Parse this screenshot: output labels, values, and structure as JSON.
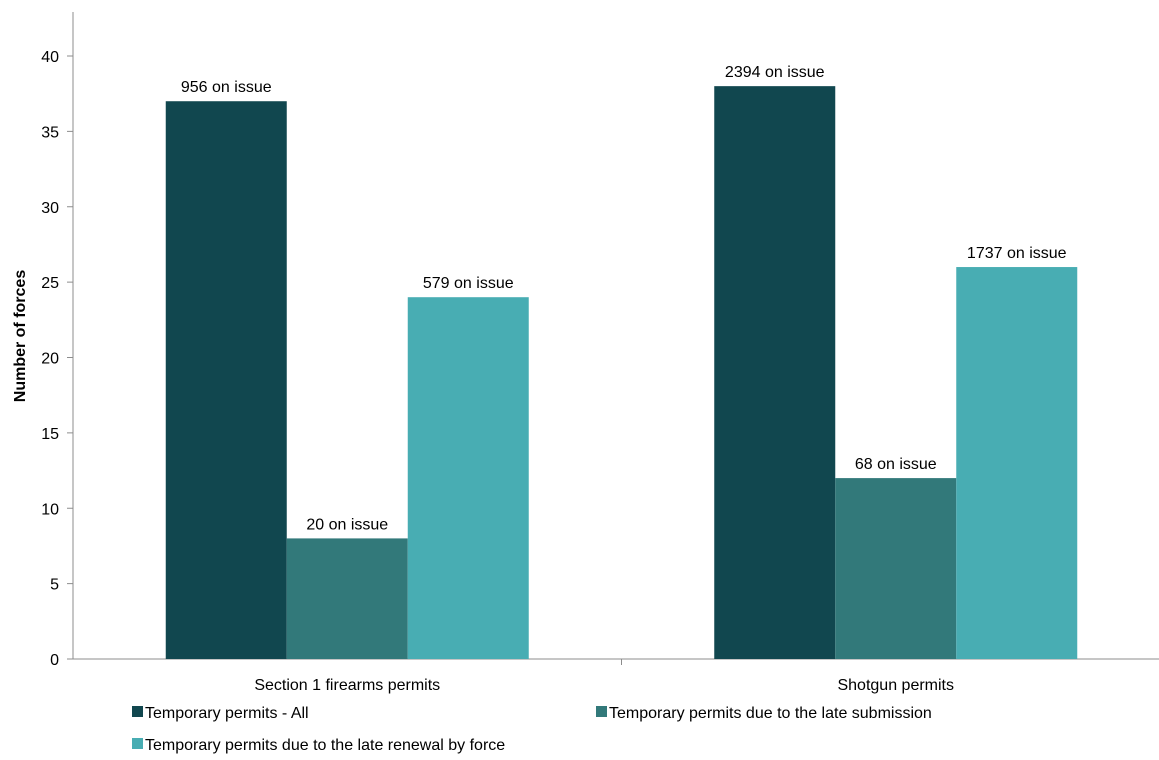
{
  "chart_data": {
    "type": "bar",
    "title": "",
    "xlabel": "",
    "ylabel": "Number of forces",
    "ylim": [
      0,
      40
    ],
    "yticks": [
      0,
      5,
      10,
      15,
      20,
      25,
      30,
      35,
      40
    ],
    "grid": false,
    "legend_position": "bottom",
    "categories": [
      "Section 1 firearms permits",
      "Shotgun permits"
    ],
    "series": [
      {
        "name": "Temporary permits - All",
        "color": "#11474f",
        "values": [
          37,
          38
        ],
        "labels": [
          "956 on issue",
          "2394 on issue"
        ]
      },
      {
        "name": "Temporary permits due to the late submission",
        "color": "#32797a",
        "values": [
          8,
          12
        ],
        "labels": [
          "20 on issue",
          "68 on issue"
        ]
      },
      {
        "name": "Temporary permits due to the late renewal by force",
        "color": "#48adb3",
        "values": [
          24,
          26
        ],
        "labels": [
          "579 on issue",
          "1737 on issue"
        ]
      }
    ]
  }
}
